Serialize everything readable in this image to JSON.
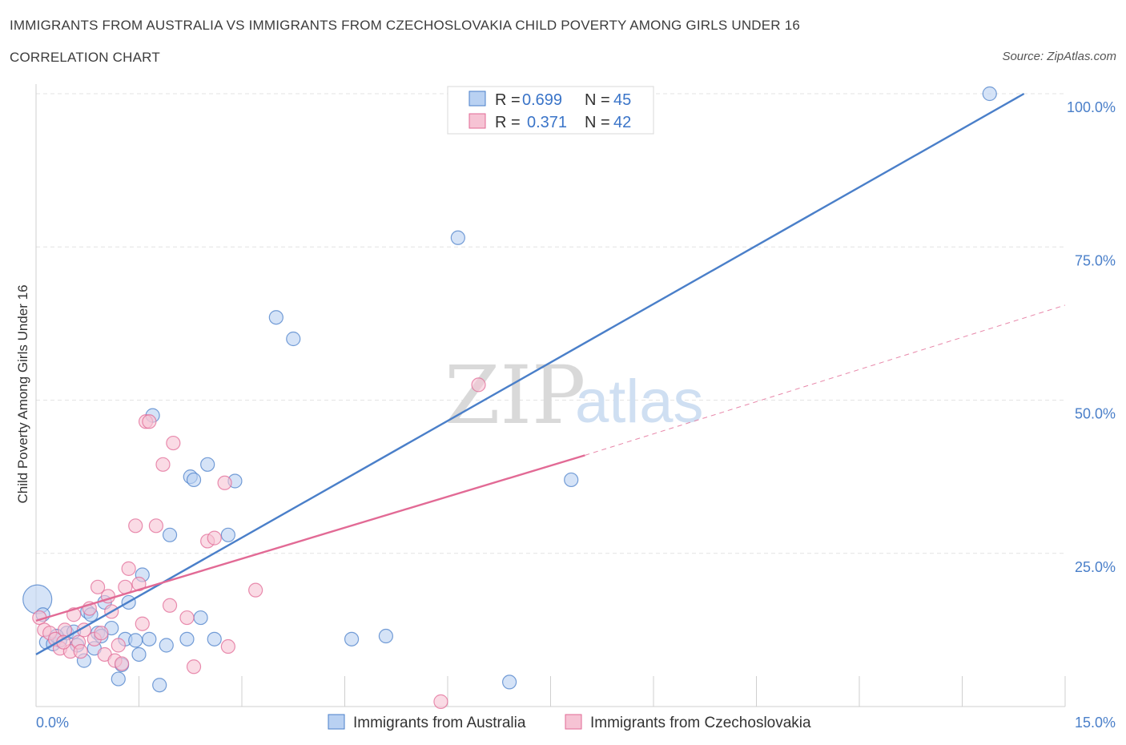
{
  "header": {
    "title": "IMMIGRANTS FROM AUSTRALIA VS IMMIGRANTS FROM CZECHOSLOVAKIA CHILD POVERTY AMONG GIRLS UNDER 16",
    "subtitle": "CORRELATION CHART",
    "source": "Source: ZipAtlas.com"
  },
  "watermark": {
    "zip": "ZIP",
    "atlas": "atlas"
  },
  "colors": {
    "australia": "#4a7fc9",
    "australia_fill": "#b9d1f2",
    "czech": "#e26a95",
    "czech_fill": "#f6c3d4",
    "grid": "#e3e3e3",
    "axis_text": "#4a7fc9"
  },
  "chart_data": {
    "type": "scatter",
    "title": "IMMIGRANTS FROM AUSTRALIA VS IMMIGRANTS FROM CZECHOSLOVAKIA CHILD POVERTY AMONG GIRLS UNDER 16",
    "xlabel": "",
    "ylabel": "Child Poverty Among Girls Under 16",
    "xlim": [
      0,
      15
    ],
    "ylim": [
      0,
      100
    ],
    "x_tick_labels": [
      "0.0%",
      "15.0%"
    ],
    "y_ticks": [
      25,
      50,
      75,
      100
    ],
    "y_tick_labels": [
      "25.0%",
      "50.0%",
      "75.0%",
      "100.0%"
    ],
    "legend": {
      "position": "top-center",
      "entries": [
        {
          "r_label": "R =",
          "r_value": "0.699",
          "n_label": "N =",
          "n_value": "45"
        },
        {
          "r_label": "R =",
          "r_value": "0.371",
          "n_label": "N =",
          "n_value": "42"
        }
      ]
    },
    "series": [
      {
        "name": "Immigrants from Australia",
        "trend": {
          "x0": 0,
          "y0": 8.5,
          "x1": 14.4,
          "y1": 100,
          "dashed_extension": false
        },
        "points": [
          {
            "x": 0.02,
            "y": 17.5,
            "big": true
          },
          {
            "x": 0.1,
            "y": 15
          },
          {
            "x": 0.15,
            "y": 10.5
          },
          {
            "x": 0.25,
            "y": 10.2
          },
          {
            "x": 0.35,
            "y": 10.8
          },
          {
            "x": 0.45,
            "y": 12
          },
          {
            "x": 0.6,
            "y": 10
          },
          {
            "x": 0.7,
            "y": 7.5
          },
          {
            "x": 0.75,
            "y": 15.5
          },
          {
            "x": 0.85,
            "y": 9.5
          },
          {
            "x": 0.9,
            "y": 12
          },
          {
            "x": 1.0,
            "y": 17
          },
          {
            "x": 1.1,
            "y": 12.8
          },
          {
            "x": 1.2,
            "y": 4.5
          },
          {
            "x": 1.25,
            "y": 6.8
          },
          {
            "x": 1.3,
            "y": 11
          },
          {
            "x": 1.35,
            "y": 17
          },
          {
            "x": 1.5,
            "y": 8.5
          },
          {
            "x": 1.55,
            "y": 21.5
          },
          {
            "x": 1.65,
            "y": 11
          },
          {
            "x": 1.7,
            "y": 47.5
          },
          {
            "x": 1.8,
            "y": 3.5
          },
          {
            "x": 1.9,
            "y": 10
          },
          {
            "x": 1.95,
            "y": 28
          },
          {
            "x": 2.2,
            "y": 11
          },
          {
            "x": 2.25,
            "y": 37.5
          },
          {
            "x": 2.3,
            "y": 37
          },
          {
            "x": 2.4,
            "y": 14.5
          },
          {
            "x": 2.5,
            "y": 39.5
          },
          {
            "x": 2.6,
            "y": 11
          },
          {
            "x": 2.8,
            "y": 28
          },
          {
            "x": 2.9,
            "y": 36.8
          },
          {
            "x": 3.5,
            "y": 63.5
          },
          {
            "x": 3.75,
            "y": 60
          },
          {
            "x": 4.6,
            "y": 11
          },
          {
            "x": 5.1,
            "y": 11.5
          },
          {
            "x": 6.15,
            "y": 76.5
          },
          {
            "x": 6.9,
            "y": 4
          },
          {
            "x": 7.8,
            "y": 37
          },
          {
            "x": 13.9,
            "y": 100
          },
          {
            "x": 0.55,
            "y": 12.2
          },
          {
            "x": 0.3,
            "y": 11.5
          },
          {
            "x": 0.8,
            "y": 15
          },
          {
            "x": 0.95,
            "y": 11.5
          },
          {
            "x": 1.45,
            "y": 10.8
          }
        ]
      },
      {
        "name": "Immigrants from Czechoslovakia",
        "trend": {
          "x0": 0,
          "y0": 14,
          "x1": 8.0,
          "y1": 41,
          "dashed_to_x": 15,
          "dashed_to_y": 65.5
        },
        "points": [
          {
            "x": 0.05,
            "y": 14.5
          },
          {
            "x": 0.12,
            "y": 12.5
          },
          {
            "x": 0.2,
            "y": 12
          },
          {
            "x": 0.28,
            "y": 11
          },
          {
            "x": 0.35,
            "y": 9.5
          },
          {
            "x": 0.42,
            "y": 12.5
          },
          {
            "x": 0.5,
            "y": 9
          },
          {
            "x": 0.55,
            "y": 15
          },
          {
            "x": 0.62,
            "y": 10.5
          },
          {
            "x": 0.7,
            "y": 12.5
          },
          {
            "x": 0.78,
            "y": 16
          },
          {
            "x": 0.85,
            "y": 11
          },
          {
            "x": 0.9,
            "y": 19.5
          },
          {
            "x": 0.95,
            "y": 12
          },
          {
            "x": 1.0,
            "y": 8.5
          },
          {
            "x": 1.05,
            "y": 18
          },
          {
            "x": 1.1,
            "y": 15.5
          },
          {
            "x": 1.15,
            "y": 7.5
          },
          {
            "x": 1.2,
            "y": 10
          },
          {
            "x": 1.25,
            "y": 7
          },
          {
            "x": 1.3,
            "y": 19.5
          },
          {
            "x": 1.35,
            "y": 22.5
          },
          {
            "x": 1.45,
            "y": 29.5
          },
          {
            "x": 1.5,
            "y": 20
          },
          {
            "x": 1.55,
            "y": 13.5
          },
          {
            "x": 1.6,
            "y": 46.5
          },
          {
            "x": 1.65,
            "y": 46.5
          },
          {
            "x": 1.75,
            "y": 29.5
          },
          {
            "x": 1.85,
            "y": 39.5
          },
          {
            "x": 1.95,
            "y": 16.5
          },
          {
            "x": 2.0,
            "y": 43
          },
          {
            "x": 2.2,
            "y": 14.5
          },
          {
            "x": 2.3,
            "y": 6.5
          },
          {
            "x": 2.5,
            "y": 27
          },
          {
            "x": 2.6,
            "y": 27.5
          },
          {
            "x": 2.75,
            "y": 36.5
          },
          {
            "x": 2.8,
            "y": 9.8
          },
          {
            "x": 3.2,
            "y": 19
          },
          {
            "x": 5.9,
            "y": 0.8
          },
          {
            "x": 6.45,
            "y": 52.5
          },
          {
            "x": 0.4,
            "y": 10.5
          },
          {
            "x": 0.65,
            "y": 9
          }
        ]
      }
    ]
  },
  "bottom_legend": [
    {
      "label": "Immigrants from Australia"
    },
    {
      "label": "Immigrants from Czechoslovakia"
    }
  ]
}
